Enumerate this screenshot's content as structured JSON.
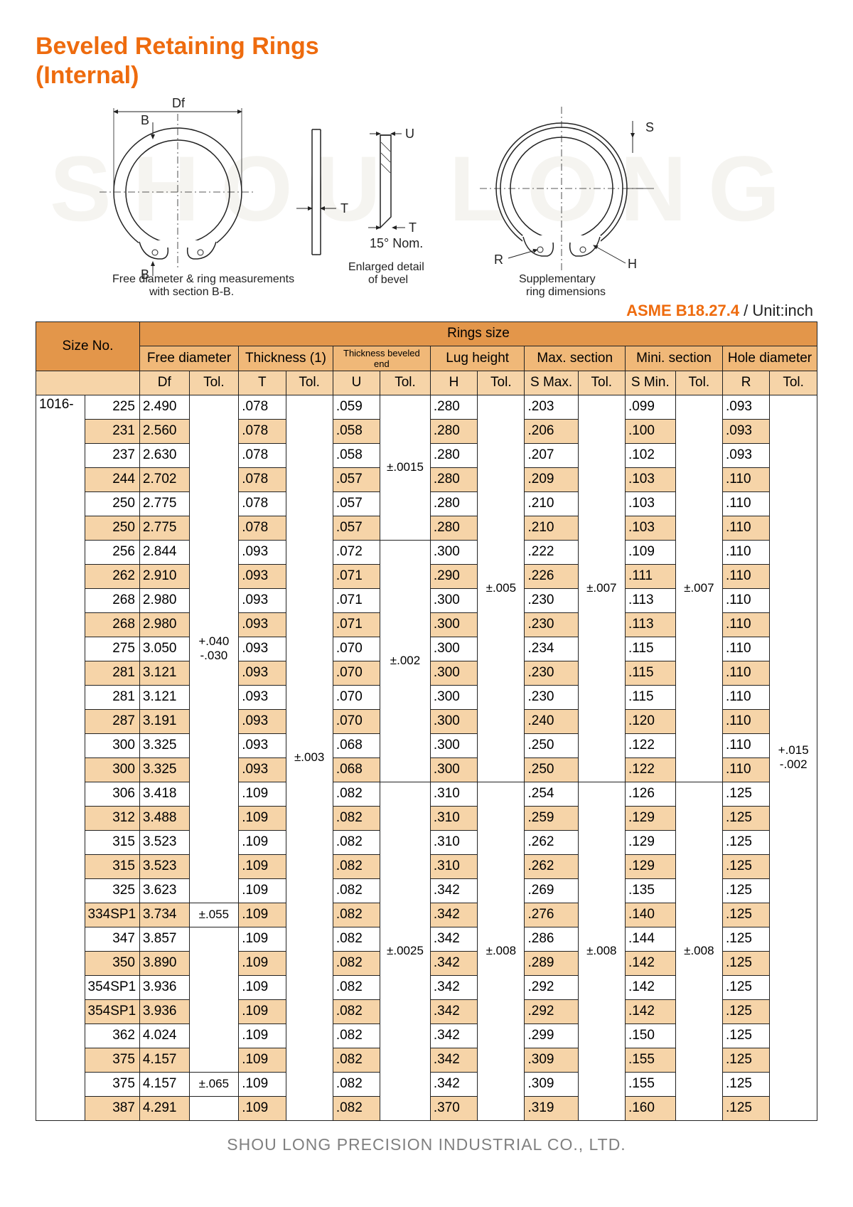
{
  "title_line1": "Beveled Retaining Rings",
  "title_line2": "(Internal)",
  "watermark": "SHOU LONG",
  "diagram": {
    "left_caption1": "Free diameter & ring measurements",
    "left_caption2": "with section B-B.",
    "mid_caption1": "Enlarged detail",
    "mid_caption2": "of bevel",
    "right_caption1": "Supplementary",
    "right_caption2": "ring dimensions",
    "lbl_Df": "Df",
    "lbl_B1": "B",
    "lbl_B2": "B",
    "lbl_T": "T",
    "lbl_U": "U",
    "lbl_T2": "T",
    "lbl_angle": "15° Nom.",
    "lbl_S": "S",
    "lbl_R": "R",
    "lbl_H": "H"
  },
  "spec_std": "ASME B18.27.4",
  "spec_unit": " / Unit:inch",
  "headers": {
    "h_sizeno": "Size No.",
    "h_ringsize": "Rings size",
    "g_fd": "Free diameter",
    "g_th": "Thickness (1)",
    "g_tbe": "Thickness beveled end",
    "g_lh": "Lug height",
    "g_max": "Max. section",
    "g_min": "Mini. section",
    "g_hd": "Hole diameter",
    "c_df": "Df",
    "c_t": "T",
    "c_u": "U",
    "c_h": "H",
    "c_smax": "S Max.",
    "c_smin": "S Min.",
    "c_r": "R",
    "c_tol": "Tol."
  },
  "prefix": "1016-",
  "tol_df": "+.040\n-.030",
  "tol_df2": "±.055",
  "tol_df3": "±.065",
  "tol_t": "±.003",
  "tol_u1": "±.0015",
  "tol_u2": "±.002",
  "tol_u3": "±.0025",
  "tol_h1": "±.005",
  "tol_h2": "±.008",
  "tol_smax1": "±.007",
  "tol_smax2": "±.008",
  "tol_smin1": "±.007",
  "tol_smin2": "±.008",
  "tol_r": "+.015\n-.002",
  "rows": [
    {
      "n": "225",
      "df": "2.490",
      "t": ".078",
      "u": ".059",
      "h": ".280",
      "sx": ".203",
      "sn": ".099",
      "r": ".093"
    },
    {
      "n": "231",
      "df": "2.560",
      "t": ".078",
      "u": ".058",
      "h": ".280",
      "sx": ".206",
      "sn": ".100",
      "r": ".093"
    },
    {
      "n": "237",
      "df": "2.630",
      "t": ".078",
      "u": ".058",
      "h": ".280",
      "sx": ".207",
      "sn": ".102",
      "r": ".093"
    },
    {
      "n": "244",
      "df": "2.702",
      "t": ".078",
      "u": ".057",
      "h": ".280",
      "sx": ".209",
      "sn": ".103",
      "r": ".110"
    },
    {
      "n": "250",
      "df": "2.775",
      "t": ".078",
      "u": ".057",
      "h": ".280",
      "sx": ".210",
      "sn": ".103",
      "r": ".110"
    },
    {
      "n": "250",
      "df": "2.775",
      "t": ".078",
      "u": ".057",
      "h": ".280",
      "sx": ".210",
      "sn": ".103",
      "r": ".110"
    },
    {
      "n": "256",
      "df": "2.844",
      "t": ".093",
      "u": ".072",
      "h": ".300",
      "sx": ".222",
      "sn": ".109",
      "r": ".110"
    },
    {
      "n": "262",
      "df": "2.910",
      "t": ".093",
      "u": ".071",
      "h": ".290",
      "sx": ".226",
      "sn": ".111",
      "r": ".110"
    },
    {
      "n": "268",
      "df": "2.980",
      "t": ".093",
      "u": ".071",
      "h": ".300",
      "sx": ".230",
      "sn": ".113",
      "r": ".110"
    },
    {
      "n": "268",
      "df": "2.980",
      "t": ".093",
      "u": ".071",
      "h": ".300",
      "sx": ".230",
      "sn": ".113",
      "r": ".110"
    },
    {
      "n": "275",
      "df": "3.050",
      "t": ".093",
      "u": ".070",
      "h": ".300",
      "sx": ".234",
      "sn": ".115",
      "r": ".110"
    },
    {
      "n": "281",
      "df": "3.121",
      "t": ".093",
      "u": ".070",
      "h": ".300",
      "sx": ".230",
      "sn": ".115",
      "r": ".110"
    },
    {
      "n": "281",
      "df": "3.121",
      "t": ".093",
      "u": ".070",
      "h": ".300",
      "sx": ".230",
      "sn": ".115",
      "r": ".110"
    },
    {
      "n": "287",
      "df": "3.191",
      "t": ".093",
      "u": ".070",
      "h": ".300",
      "sx": ".240",
      "sn": ".120",
      "r": ".110"
    },
    {
      "n": "300",
      "df": "3.325",
      "t": ".093",
      "u": ".068",
      "h": ".300",
      "sx": ".250",
      "sn": ".122",
      "r": ".110"
    },
    {
      "n": "300",
      "df": "3.325",
      "t": ".093",
      "u": ".068",
      "h": ".300",
      "sx": ".250",
      "sn": ".122",
      "r": ".110"
    },
    {
      "n": "306",
      "df": "3.418",
      "t": ".109",
      "u": ".082",
      "h": ".310",
      "sx": ".254",
      "sn": ".126",
      "r": ".125"
    },
    {
      "n": "312",
      "df": "3.488",
      "t": ".109",
      "u": ".082",
      "h": ".310",
      "sx": ".259",
      "sn": ".129",
      "r": ".125"
    },
    {
      "n": "315",
      "df": "3.523",
      "t": ".109",
      "u": ".082",
      "h": ".310",
      "sx": ".262",
      "sn": ".129",
      "r": ".125"
    },
    {
      "n": "315",
      "df": "3.523",
      "t": ".109",
      "u": ".082",
      "h": ".310",
      "sx": ".262",
      "sn": ".129",
      "r": ".125"
    },
    {
      "n": "325",
      "df": "3.623",
      "t": ".109",
      "u": ".082",
      "h": ".342",
      "sx": ".269",
      "sn": ".135",
      "r": ".125"
    },
    {
      "n": "334SP1",
      "df": "3.734",
      "t": ".109",
      "u": ".082",
      "h": ".342",
      "sx": ".276",
      "sn": ".140",
      "r": ".125"
    },
    {
      "n": "347",
      "df": "3.857",
      "t": ".109",
      "u": ".082",
      "h": ".342",
      "sx": ".286",
      "sn": ".144",
      "r": ".125"
    },
    {
      "n": "350",
      "df": "3.890",
      "t": ".109",
      "u": ".082",
      "h": ".342",
      "sx": ".289",
      "sn": ".142",
      "r": ".125"
    },
    {
      "n": "354SP1",
      "df": "3.936",
      "t": ".109",
      "u": ".082",
      "h": ".342",
      "sx": ".292",
      "sn": ".142",
      "r": ".125"
    },
    {
      "n": "354SP1",
      "df": "3.936",
      "t": ".109",
      "u": ".082",
      "h": ".342",
      "sx": ".292",
      "sn": ".142",
      "r": ".125"
    },
    {
      "n": "362",
      "df": "4.024",
      "t": ".109",
      "u": ".082",
      "h": ".342",
      "sx": ".299",
      "sn": ".150",
      "r": ".125"
    },
    {
      "n": "375",
      "df": "4.157",
      "t": ".109",
      "u": ".082",
      "h": ".342",
      "sx": ".309",
      "sn": ".155",
      "r": ".125"
    },
    {
      "n": "375",
      "df": "4.157",
      "t": ".109",
      "u": ".082",
      "h": ".342",
      "sx": ".309",
      "sn": ".155",
      "r": ".125"
    },
    {
      "n": "387",
      "df": "4.291",
      "t": ".109",
      "u": ".082",
      "h": ".370",
      "sx": ".319",
      "sn": ".160",
      "r": ".125"
    }
  ],
  "footer": "SHOU LONG PRECISION INDUSTRIAL CO., LTD."
}
